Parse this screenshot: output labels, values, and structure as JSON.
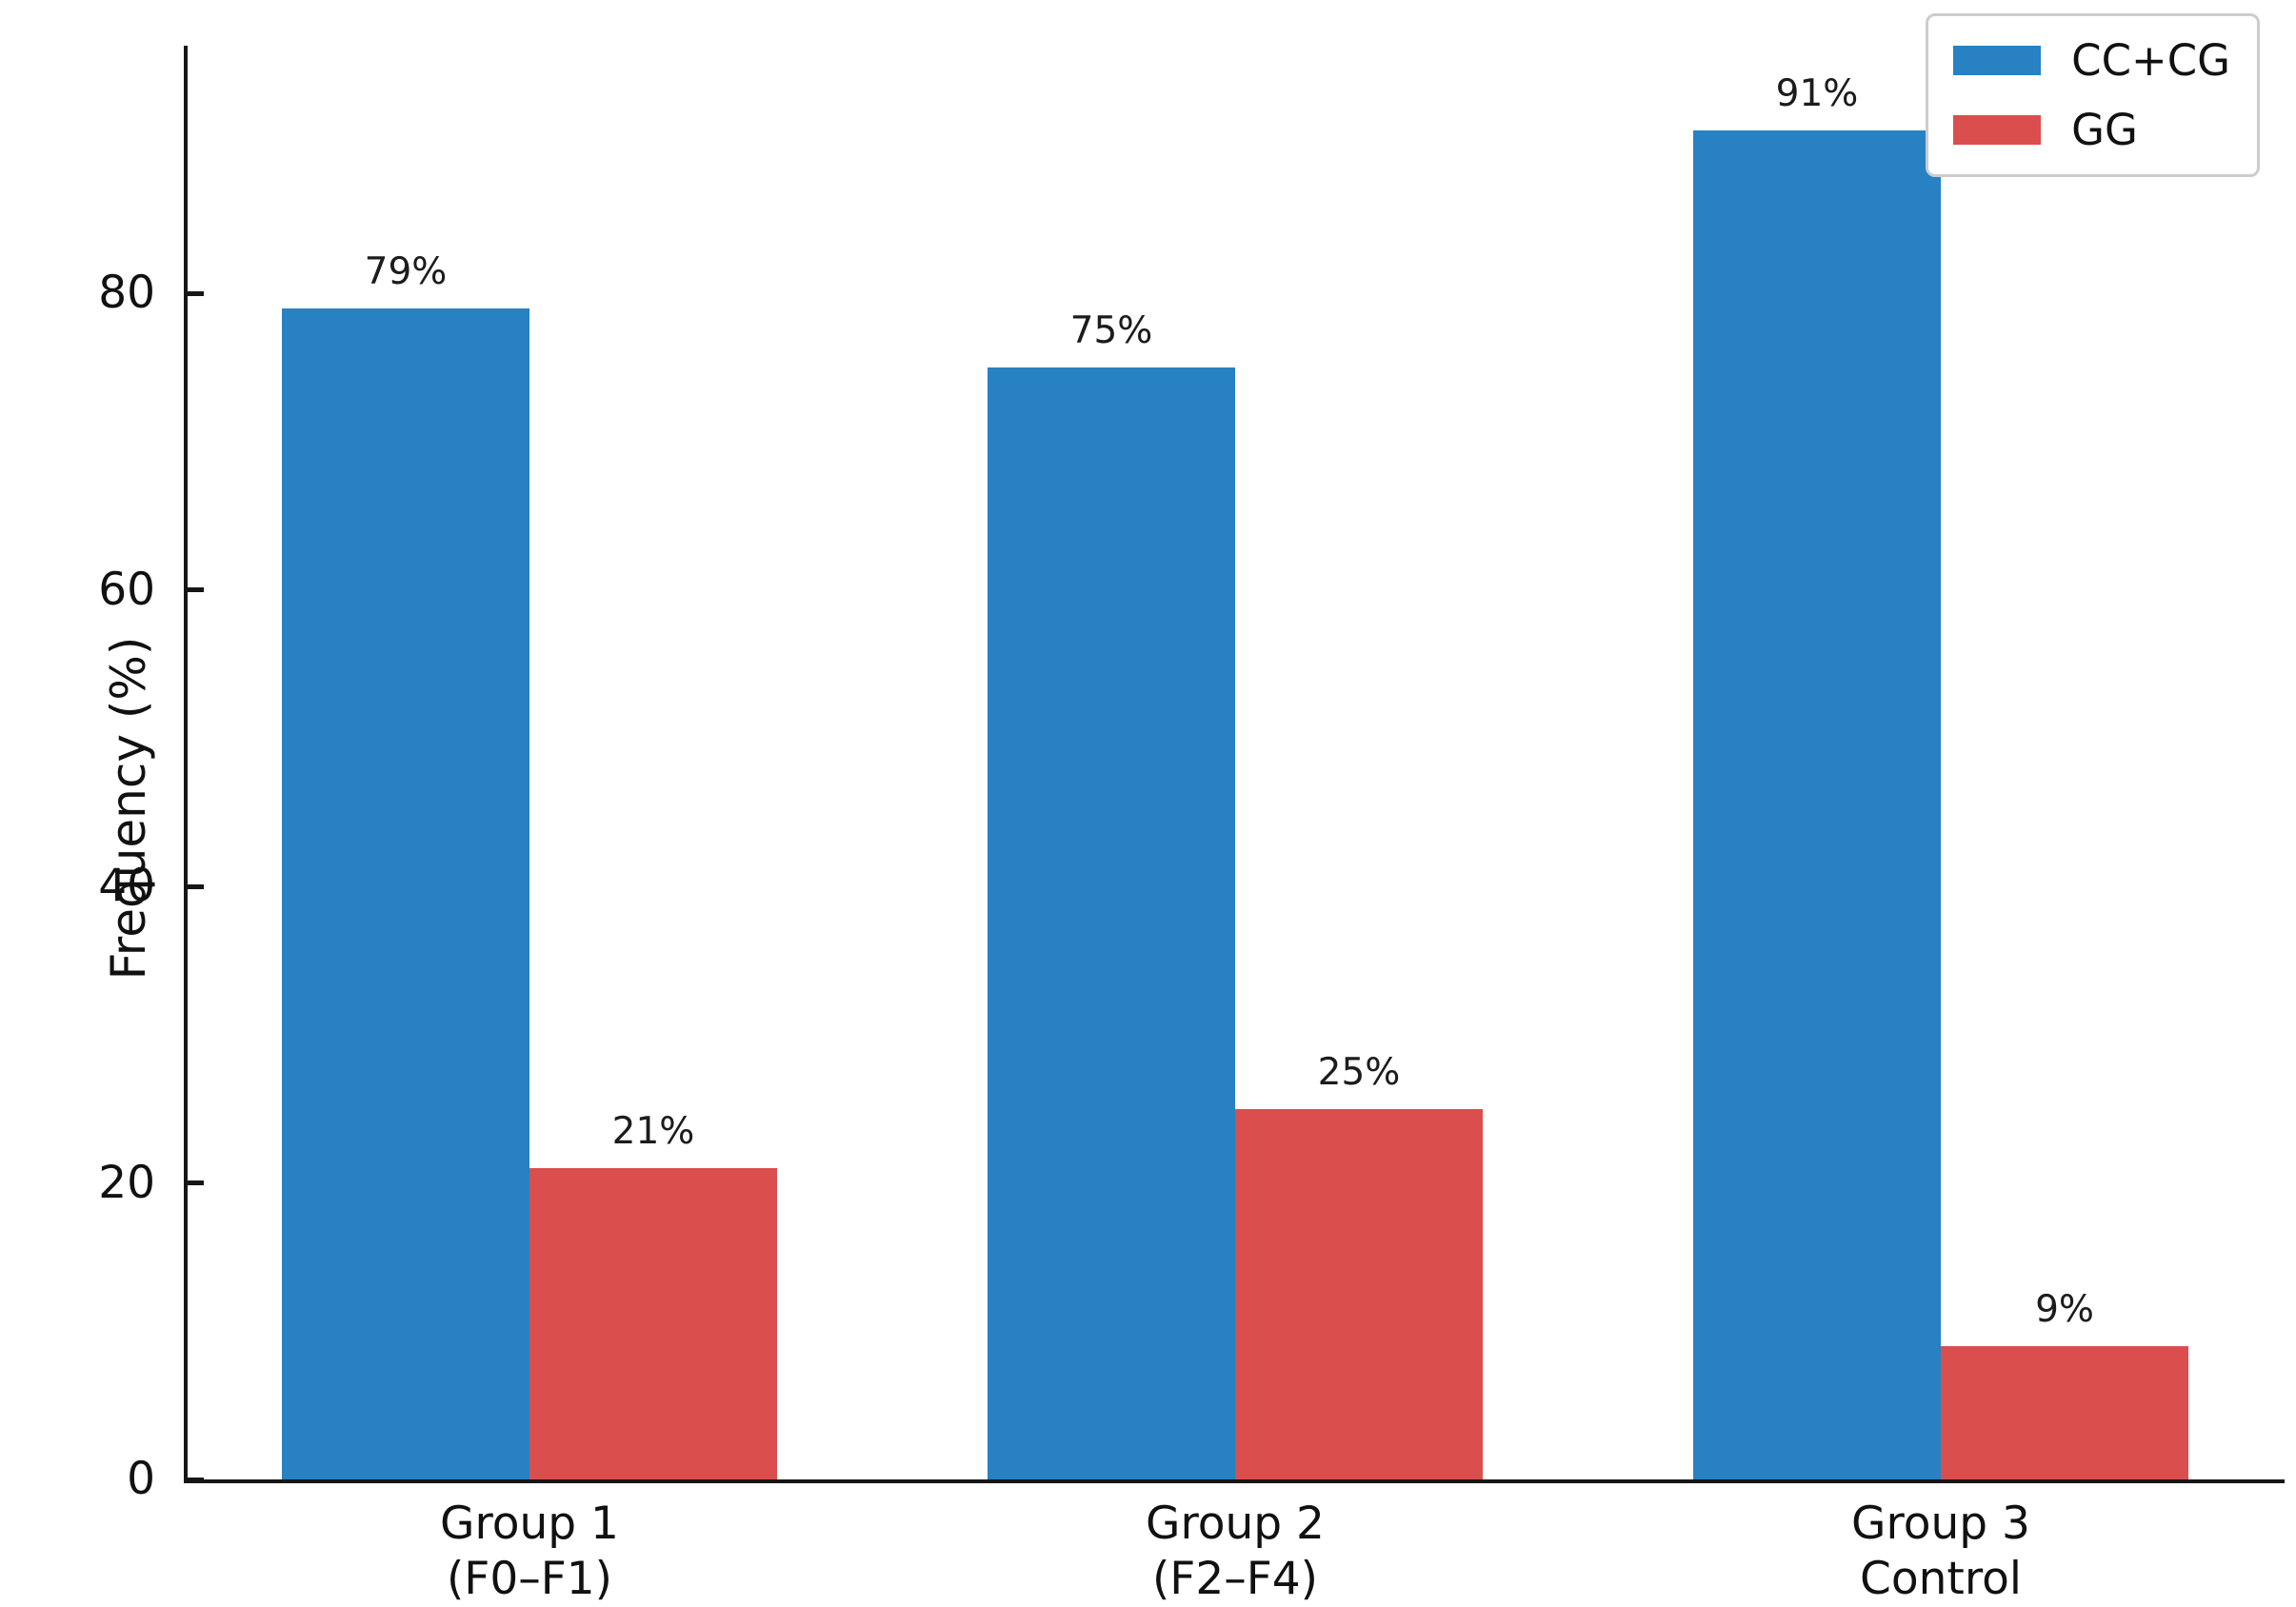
{
  "chart_data": {
    "type": "bar",
    "title": "",
    "xlabel": "",
    "ylabel": "Frequency (%)",
    "categories": [
      {
        "lines": [
          "Group 1",
          "(F0–F1)"
        ]
      },
      {
        "lines": [
          "Group 2",
          "(F2–F4)"
        ]
      },
      {
        "lines": [
          "Group 3",
          "Control"
        ]
      }
    ],
    "series": [
      {
        "name": "CC+CG",
        "color": "#2781c3",
        "values": [
          79,
          75,
          91
        ],
        "value_labels": [
          "79%",
          "75%",
          "91%"
        ]
      },
      {
        "name": "GG",
        "color": "#da4f4d",
        "values": [
          21,
          25,
          9
        ],
        "value_labels": [
          "21%",
          "25%",
          "9%"
        ]
      }
    ],
    "y_ticks": [
      0,
      20,
      40,
      60,
      80
    ],
    "ylim": [
      0,
      96.7
    ],
    "grid": false,
    "legend_position": "upper-right",
    "colors": {
      "axis": "#161616",
      "text": "#111111",
      "legend_border": "#cccccc",
      "background": "#ffffff"
    }
  }
}
